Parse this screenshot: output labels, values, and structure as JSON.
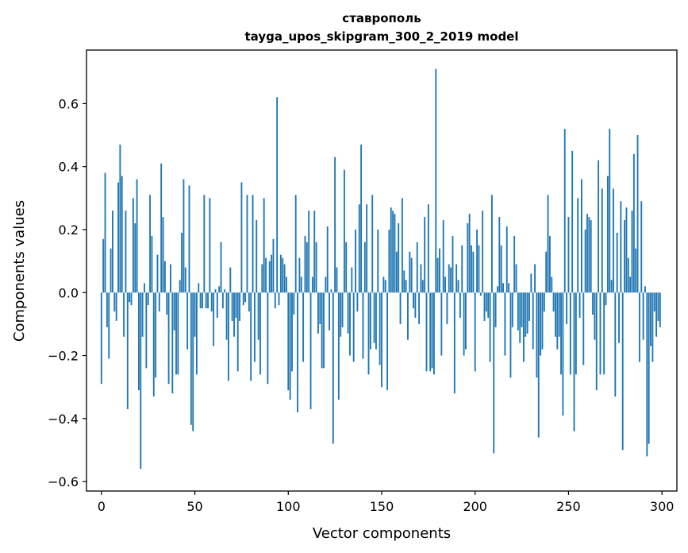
{
  "chart_data": {
    "type": "bar",
    "title": "ставрополь",
    "subtitle": "tayga_upos_skipgram_300_2_2019 model",
    "xlabel": "Vector components",
    "ylabel": "Components values",
    "xlim": [
      -8,
      308
    ],
    "ylim": [
      -0.63,
      0.77
    ],
    "xticks": [
      0,
      50,
      100,
      150,
      200,
      250,
      300
    ],
    "xtick_labels": [
      "0",
      "50",
      "100",
      "150",
      "200",
      "250",
      "300"
    ],
    "yticks": [
      -0.6,
      -0.4,
      -0.2,
      0.0,
      0.2,
      0.4,
      0.6
    ],
    "ytick_labels": [
      "−0.6",
      "−0.4",
      "−0.2",
      "0.0",
      "0.2",
      "0.4",
      "0.6"
    ],
    "bar_color": "#1f77b4",
    "grid": false,
    "x": "0..299",
    "values": [
      -0.29,
      0.17,
      0.38,
      -0.11,
      -0.21,
      0.14,
      0.26,
      -0.06,
      -0.09,
      0.35,
      0.47,
      0.37,
      -0.14,
      0.26,
      -0.37,
      -0.03,
      -0.04,
      0.3,
      0.22,
      0.36,
      -0.31,
      -0.56,
      -0.14,
      0.03,
      -0.24,
      -0.04,
      0.31,
      0.18,
      -0.33,
      -0.27,
      0.12,
      -0.06,
      0.41,
      0.24,
      0.1,
      -0.07,
      -0.29,
      0.09,
      -0.32,
      -0.12,
      -0.26,
      -0.26,
      0.04,
      0.19,
      0.36,
      0.08,
      -0.18,
      0.34,
      -0.42,
      -0.44,
      -0.14,
      -0.26,
      0.03,
      -0.05,
      -0.05,
      0.31,
      -0.05,
      -0.05,
      0.3,
      -0.06,
      -0.17,
      0.01,
      -0.08,
      0.02,
      0.16,
      -0.05,
      0.01,
      -0.15,
      -0.28,
      0.08,
      -0.09,
      -0.14,
      -0.08,
      -0.25,
      -0.09,
      0.35,
      -0.04,
      -0.03,
      0.31,
      -0.06,
      -0.28,
      0.31,
      -0.22,
      0.23,
      -0.15,
      -0.26,
      0.09,
      0.3,
      0.11,
      -0.29,
      0.1,
      0.12,
      0.17,
      -0.05,
      0.62,
      -0.04,
      0.12,
      0.11,
      0.09,
      0.05,
      -0.31,
      -0.34,
      -0.25,
      -0.07,
      0.31,
      -0.38,
      0.11,
      0.05,
      -0.22,
      0.18,
      0.16,
      0.26,
      -0.37,
      0.05,
      0.26,
      0.16,
      -0.13,
      -0.1,
      -0.24,
      -0.24,
      0.05,
      0.21,
      -0.12,
      0.01,
      -0.48,
      0.43,
      0.08,
      -0.34,
      -0.14,
      -0.11,
      0.39,
      0.16,
      -0.13,
      -0.2,
      0.08,
      -0.22,
      0.2,
      -0.06,
      0.28,
      0.47,
      -0.21,
      0.16,
      0.28,
      -0.26,
      -0.18,
      0.31,
      -0.16,
      -0.18,
      0.2,
      -0.23,
      -0.3,
      0.05,
      0.04,
      -0.31,
      0.2,
      0.27,
      0.26,
      0.25,
      0.13,
      0.22,
      -0.1,
      0.3,
      0.07,
      0.04,
      -0.15,
      0.13,
      0.11,
      -0.05,
      -0.08,
      0.16,
      -0.1,
      0.09,
      0.04,
      0.24,
      -0.25,
      0.28,
      -0.25,
      -0.24,
      -0.26,
      0.71,
      0.11,
      0.14,
      -0.2,
      0.23,
      0.05,
      -0.1,
      0.09,
      0.08,
      0.18,
      -0.32,
      0.09,
      0.04,
      -0.08,
      0.15,
      -0.2,
      -0.18,
      0.22,
      0.25,
      0.15,
      0.13,
      -0.25,
      0.2,
      0.15,
      -0.01,
      0.26,
      -0.09,
      -0.06,
      -0.08,
      -0.22,
      0.31,
      -0.51,
      -0.11,
      0.02,
      0.24,
      0.15,
      0.03,
      -0.2,
      0.21,
      0.03,
      -0.27,
      -0.11,
      0.18,
      0.09,
      -0.12,
      -0.16,
      -0.11,
      -0.22,
      -0.14,
      -0.13,
      -0.09,
      0.06,
      -0.18,
      0.09,
      -0.27,
      -0.46,
      -0.2,
      -0.18,
      -0.06,
      0.13,
      0.31,
      0.18,
      0.05,
      -0.06,
      -0.14,
      -0.18,
      -0.14,
      -0.26,
      -0.39,
      0.52,
      -0.1,
      0.24,
      -0.26,
      0.45,
      -0.44,
      -0.26,
      0.3,
      -0.08,
      0.36,
      -0.23,
      0.2,
      0.25,
      0.24,
      0.23,
      -0.07,
      -0.15,
      -0.31,
      0.42,
      -0.26,
      0.33,
      -0.26,
      -0.04,
      0.37,
      0.52,
      0.04,
      0.33,
      -0.33,
      0.19,
      -0.16,
      0.29,
      -0.5,
      0.23,
      0.27,
      0.11,
      0.05,
      0.26,
      0.44,
      0.14,
      0.5,
      -0.22,
      0.29,
      -0.15,
      0.02,
      -0.52,
      -0.48,
      -0.17,
      -0.22,
      -0.06,
      -0.14,
      -0.09,
      -0.11
    ]
  }
}
